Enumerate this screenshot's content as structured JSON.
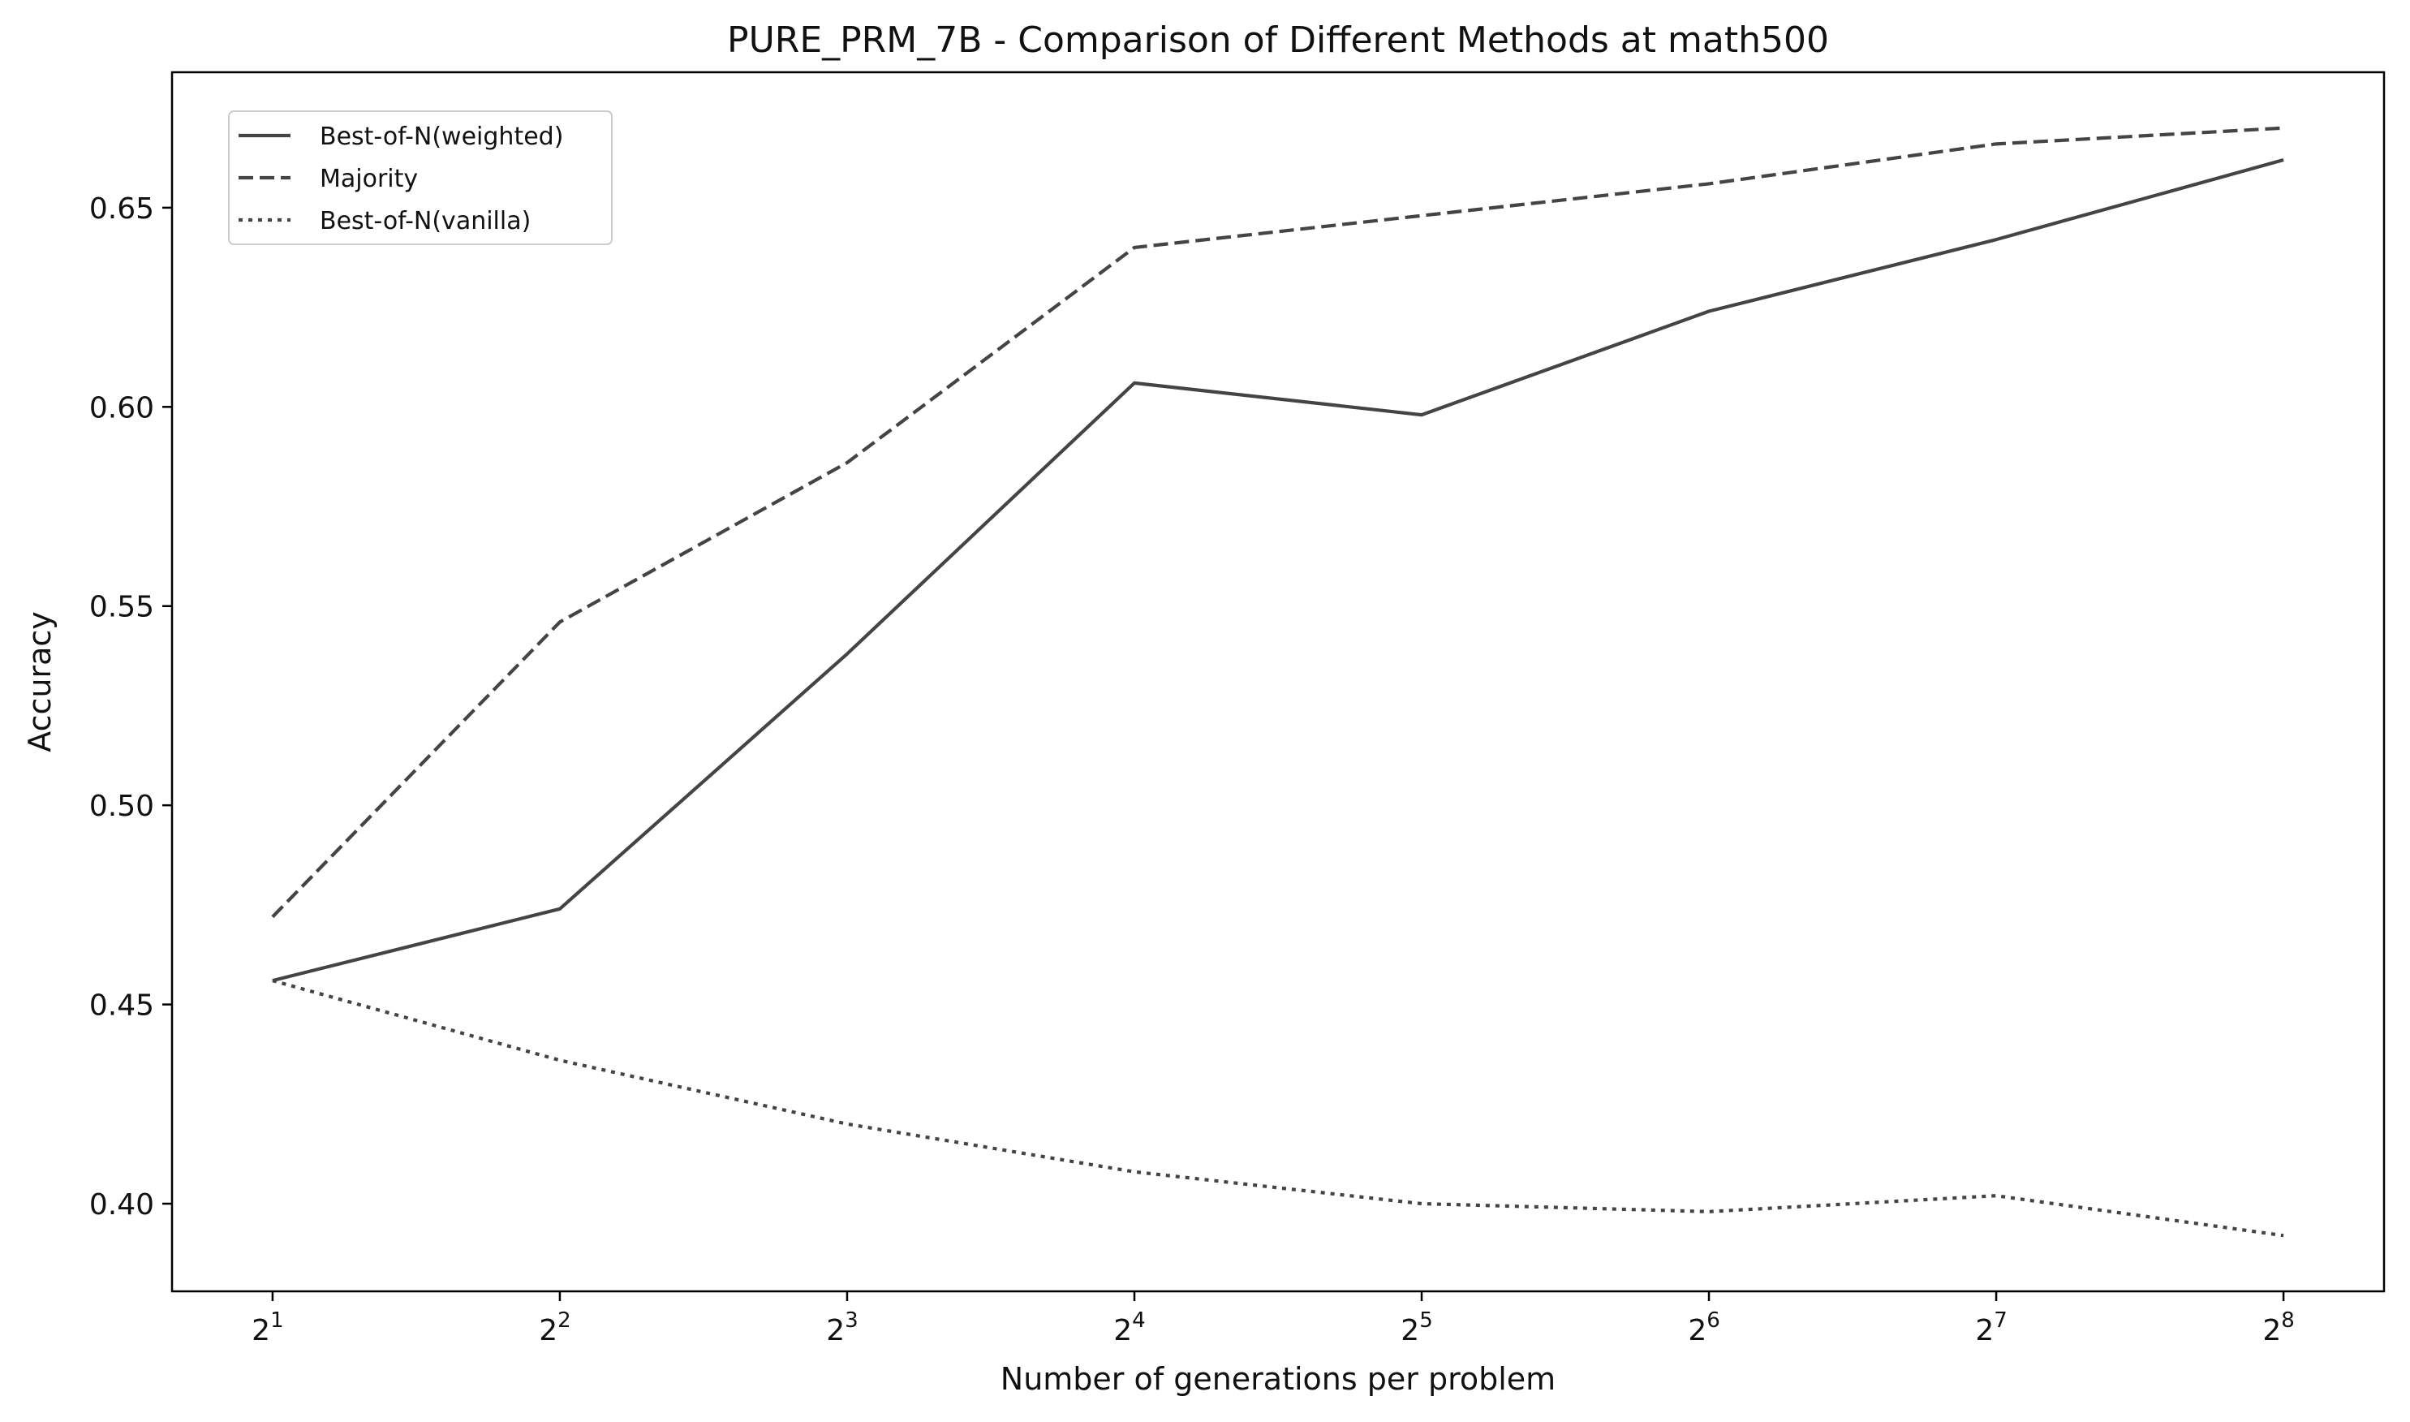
{
  "chart_data": {
    "type": "line",
    "title": "PURE_PRM_7B - Comparison of Different Methods at math500",
    "xlabel": "Number of generations per problem",
    "ylabel": "Accuracy",
    "x_scale": "log2",
    "x": [
      2,
      4,
      8,
      16,
      32,
      64,
      128,
      256
    ],
    "x_tick_labels": [
      {
        "base": "2",
        "exp": "1"
      },
      {
        "base": "2",
        "exp": "2"
      },
      {
        "base": "2",
        "exp": "3"
      },
      {
        "base": "2",
        "exp": "4"
      },
      {
        "base": "2",
        "exp": "5"
      },
      {
        "base": "2",
        "exp": "6"
      },
      {
        "base": "2",
        "exp": "7"
      },
      {
        "base": "2",
        "exp": "8"
      }
    ],
    "y_ticks": [
      "0.40",
      "0.45",
      "0.50",
      "0.55",
      "0.60",
      "0.65"
    ],
    "ylim": [
      0.378,
      0.684
    ],
    "grid": false,
    "legend_position": "top-left",
    "line_color": "#444444",
    "series": [
      {
        "name": "Best-of-N(weighted)",
        "style": "solid",
        "values": [
          0.456,
          0.474,
          0.538,
          0.606,
          0.598,
          0.624,
          0.642,
          0.662
        ]
      },
      {
        "name": "Majority",
        "style": "dashed",
        "values": [
          0.472,
          0.546,
          0.586,
          0.64,
          0.648,
          0.656,
          0.666,
          0.67
        ]
      },
      {
        "name": "Best-of-N(vanilla)",
        "style": "dotted",
        "values": [
          0.456,
          0.436,
          0.42,
          0.408,
          0.4,
          0.398,
          0.402,
          0.392
        ]
      }
    ]
  }
}
